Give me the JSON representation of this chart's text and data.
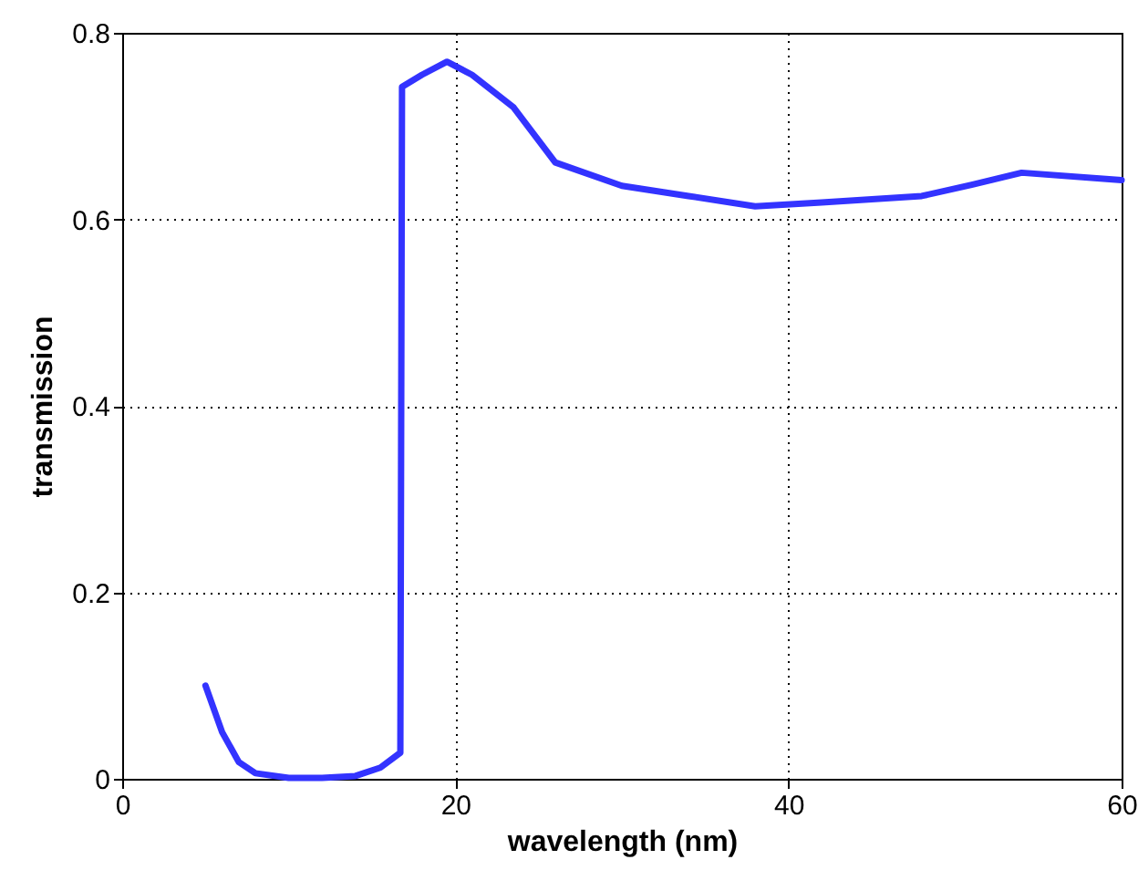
{
  "chart_data": {
    "type": "line",
    "xlabel": "wavelength (nm)",
    "ylabel": "transmission",
    "x": [
      5,
      6,
      7,
      8,
      10,
      12,
      14,
      15.5,
      16.7,
      16.8,
      18,
      19.5,
      21,
      23.5,
      26,
      30,
      34,
      38,
      42,
      48,
      51,
      54,
      60
    ],
    "series": [
      {
        "color": "#3333ff",
        "values": [
          0.1,
          0.05,
          0.018,
          0.006,
          0.001,
          0.001,
          0.003,
          0.012,
          0.028,
          0.742,
          0.755,
          0.769,
          0.755,
          0.72,
          0.661,
          0.636,
          0.625,
          0.614,
          0.618,
          0.625,
          0.637,
          0.65,
          0.642
        ]
      }
    ],
    "xlim": [
      0,
      60
    ],
    "xticks": [
      0,
      20,
      40,
      60
    ],
    "ylim": [
      0,
      0.8
    ],
    "yticks": [
      0,
      0.2,
      0.4,
      0.6,
      0.8
    ],
    "grid": true
  }
}
